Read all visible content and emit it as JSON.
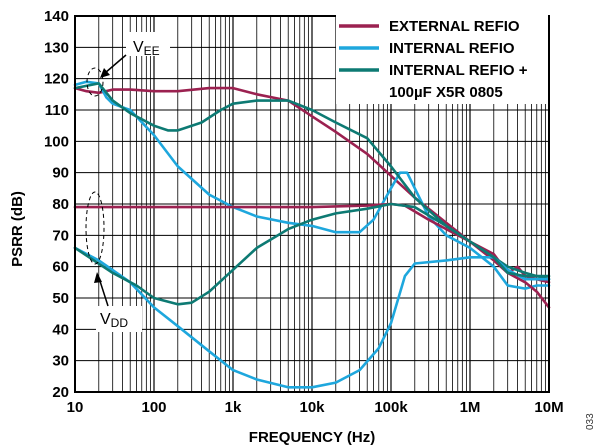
{
  "chart_data": {
    "type": "line",
    "xlabel": "FREQUENCY (Hz)",
    "ylabel": "PSRR (dB)",
    "x_scale": "log",
    "xlim": [
      10,
      10000000
    ],
    "ylim": [
      20,
      140
    ],
    "x_ticks": [
      10,
      100,
      1000,
      10000,
      100000,
      1000000,
      10000000
    ],
    "x_tick_labels": [
      "10",
      "100",
      "1k",
      "10k",
      "100k",
      "1M",
      "10M"
    ],
    "y_ticks": [
      20,
      30,
      40,
      50,
      60,
      70,
      80,
      90,
      100,
      110,
      120,
      130,
      140
    ],
    "y_tick_labels": [
      "20",
      "30",
      "40",
      "50",
      "60",
      "70",
      "80",
      "90",
      "100",
      "110",
      "120",
      "130",
      "140"
    ],
    "grid": true,
    "legend_position": "top-right",
    "legend": [
      {
        "label": "EXTERNAL REFIO",
        "color": "#9b2150"
      },
      {
        "label": "INTERNAL REFIO",
        "color": "#1ea7dd"
      },
      {
        "label": "INTERNAL REFIO +",
        "color": "#0d7a73"
      },
      {
        "label": "100µF X5R 0805",
        "color": ""
      }
    ],
    "annotations": [
      {
        "label": "V",
        "subscript": "EE",
        "target": "upper curve group"
      },
      {
        "label": "V",
        "subscript": "DD",
        "target": "lower curve group"
      }
    ],
    "figure_id": "033",
    "series": [
      {
        "name": "EXTERNAL REFIO",
        "group": "VEE",
        "color": "#9b2150",
        "points": [
          [
            10,
            117
          ],
          [
            14,
            116
          ],
          [
            20,
            115.5
          ],
          [
            30,
            116.5
          ],
          [
            50,
            116.5
          ],
          [
            100,
            116
          ],
          [
            200,
            116
          ],
          [
            500,
            117
          ],
          [
            1000,
            117
          ],
          [
            2000,
            115
          ],
          [
            5000,
            113
          ],
          [
            10000,
            108
          ],
          [
            20000,
            103
          ],
          [
            50000,
            96
          ],
          [
            100000,
            89
          ],
          [
            200000,
            82
          ],
          [
            500000,
            74
          ],
          [
            1000000,
            68
          ],
          [
            2000000,
            64
          ],
          [
            3000000,
            58
          ],
          [
            4000000,
            60
          ],
          [
            5000000,
            57
          ],
          [
            7000000,
            56
          ],
          [
            10000000,
            55
          ]
        ]
      },
      {
        "name": "INTERNAL REFIO",
        "group": "VEE",
        "color": "#1ea7dd",
        "points": [
          [
            10,
            118
          ],
          [
            14,
            119
          ],
          [
            20,
            118.5
          ],
          [
            25,
            114
          ],
          [
            30,
            112
          ],
          [
            50,
            110
          ],
          [
            100,
            102
          ],
          [
            200,
            92
          ],
          [
            500,
            83
          ],
          [
            1000,
            79
          ],
          [
            2000,
            76
          ],
          [
            5000,
            74
          ],
          [
            10000,
            73
          ],
          [
            20000,
            71
          ],
          [
            40000,
            71
          ],
          [
            60000,
            75
          ],
          [
            100000,
            85
          ],
          [
            130000,
            90
          ],
          [
            160000,
            90
          ],
          [
            200000,
            85
          ],
          [
            300000,
            76
          ],
          [
            500000,
            70
          ],
          [
            1000000,
            66
          ],
          [
            2000000,
            60
          ],
          [
            3000000,
            54
          ],
          [
            5000000,
            53
          ],
          [
            7000000,
            54
          ],
          [
            10000000,
            54
          ]
        ]
      },
      {
        "name": "INTERNAL REFIO + 100µF X5R 0805",
        "group": "VEE",
        "color": "#0d7a73",
        "points": [
          [
            10,
            117
          ],
          [
            20,
            118.5
          ],
          [
            30,
            113
          ],
          [
            50,
            109
          ],
          [
            100,
            105
          ],
          [
            150,
            103.5
          ],
          [
            200,
            103.5
          ],
          [
            400,
            106
          ],
          [
            700,
            110
          ],
          [
            1000,
            112
          ],
          [
            2000,
            113
          ],
          [
            5000,
            113
          ],
          [
            10000,
            110
          ],
          [
            20000,
            106
          ],
          [
            50000,
            101
          ],
          [
            100000,
            92
          ],
          [
            200000,
            82
          ],
          [
            500000,
            73
          ],
          [
            1000000,
            68
          ],
          [
            2000000,
            63
          ],
          [
            3000000,
            60
          ],
          [
            5000000,
            58
          ],
          [
            7000000,
            57
          ],
          [
            10000000,
            56
          ]
        ]
      },
      {
        "name": "EXTERNAL REFIO",
        "group": "VDD",
        "color": "#9b2150",
        "points": [
          [
            10,
            79
          ],
          [
            100,
            79
          ],
          [
            1000,
            79
          ],
          [
            10000,
            79
          ],
          [
            50000,
            79.5
          ],
          [
            100000,
            80
          ],
          [
            150000,
            79.5
          ],
          [
            300000,
            75
          ],
          [
            500000,
            72
          ],
          [
            1000000,
            68
          ],
          [
            2000000,
            62
          ],
          [
            3000000,
            58
          ],
          [
            5000000,
            55
          ],
          [
            7000000,
            52
          ],
          [
            10000000,
            47
          ]
        ]
      },
      {
        "name": "INTERNAL REFIO",
        "group": "VDD",
        "color": "#1ea7dd",
        "points": [
          [
            10,
            66
          ],
          [
            20,
            62
          ],
          [
            50,
            55
          ],
          [
            100,
            47
          ],
          [
            200,
            41
          ],
          [
            500,
            33
          ],
          [
            1000,
            27
          ],
          [
            2000,
            24
          ],
          [
            5000,
            21.5
          ],
          [
            10000,
            21.5
          ],
          [
            20000,
            23
          ],
          [
            40000,
            27
          ],
          [
            70000,
            34
          ],
          [
            100000,
            42
          ],
          [
            150000,
            57
          ],
          [
            200000,
            61
          ],
          [
            500000,
            62
          ],
          [
            1000000,
            63
          ],
          [
            2000000,
            63
          ],
          [
            3000000,
            59
          ],
          [
            5000000,
            56
          ],
          [
            7000000,
            56
          ],
          [
            10000000,
            56
          ]
        ]
      },
      {
        "name": "INTERNAL REFIO + 100µF X5R 0805",
        "group": "VDD",
        "color": "#0d7a73",
        "points": [
          [
            10,
            66
          ],
          [
            30,
            58
          ],
          [
            60,
            54
          ],
          [
            100,
            50
          ],
          [
            200,
            48
          ],
          [
            300,
            48.5
          ],
          [
            500,
            52
          ],
          [
            1000,
            59
          ],
          [
            2000,
            66
          ],
          [
            5000,
            72
          ],
          [
            10000,
            75
          ],
          [
            20000,
            77
          ],
          [
            50000,
            78.5
          ],
          [
            100000,
            80
          ],
          [
            200000,
            79
          ],
          [
            500000,
            73
          ],
          [
            1000000,
            68
          ],
          [
            2000000,
            63
          ],
          [
            3000000,
            58
          ],
          [
            5000000,
            57
          ],
          [
            7000000,
            57
          ],
          [
            10000000,
            57
          ]
        ]
      }
    ]
  }
}
